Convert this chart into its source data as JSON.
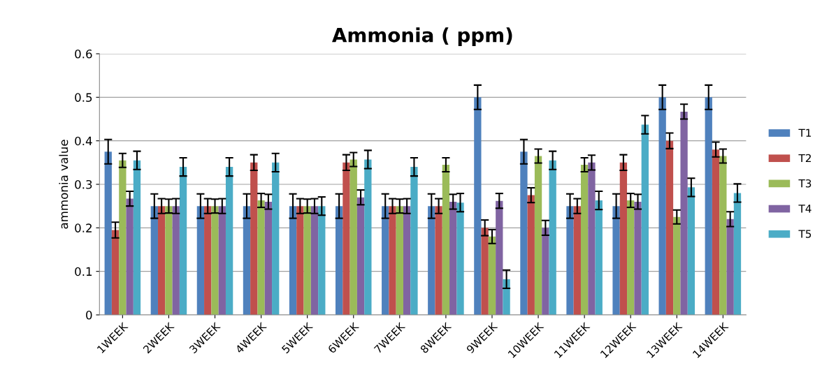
{
  "chart_data": {
    "type": "bar",
    "title": "Ammonia ( ppm)",
    "ylabel": "ammonia value",
    "categories": [
      "1WEEK",
      "2WEEK",
      "3WEEK",
      "4WEEK",
      "5WEEK",
      "6WEEK",
      "7WEEK",
      "8WEEK",
      "9WEEK",
      "10WEEK",
      "11WEEK",
      "12WEEK",
      "13WEEK",
      "14WEEK"
    ],
    "series": [
      {
        "name": "T1",
        "color": "#4f81bd",
        "values": [
          0.375,
          0.25,
          0.25,
          0.25,
          0.25,
          0.25,
          0.25,
          0.25,
          0.5,
          0.375,
          0.25,
          0.25,
          0.5,
          0.5
        ],
        "errors": [
          0.028,
          0.028,
          0.028,
          0.028,
          0.028,
          0.028,
          0.028,
          0.028,
          0.028,
          0.028,
          0.028,
          0.028,
          0.028,
          0.028
        ]
      },
      {
        "name": "T2",
        "color": "#c0504d",
        "values": [
          0.195,
          0.25,
          0.25,
          0.35,
          0.25,
          0.35,
          0.25,
          0.25,
          0.2,
          0.275,
          0.25,
          0.35,
          0.4,
          0.38
        ],
        "errors": [
          0.018,
          0.017,
          0.017,
          0.018,
          0.017,
          0.018,
          0.017,
          0.017,
          0.018,
          0.017,
          0.017,
          0.018,
          0.018,
          0.017
        ]
      },
      {
        "name": "T3",
        "color": "#9bbb59",
        "values": [
          0.355,
          0.25,
          0.25,
          0.263,
          0.25,
          0.357,
          0.25,
          0.345,
          0.18,
          0.365,
          0.345,
          0.263,
          0.225,
          0.365
        ],
        "errors": [
          0.016,
          0.016,
          0.016,
          0.016,
          0.016,
          0.016,
          0.016,
          0.016,
          0.016,
          0.016,
          0.016,
          0.016,
          0.016,
          0.016
        ]
      },
      {
        "name": "T4",
        "color": "#8064a2",
        "values": [
          0.267,
          0.25,
          0.25,
          0.26,
          0.25,
          0.27,
          0.25,
          0.26,
          0.262,
          0.2,
          0.35,
          0.26,
          0.467,
          0.22
        ],
        "errors": [
          0.017,
          0.017,
          0.017,
          0.017,
          0.017,
          0.017,
          0.017,
          0.017,
          0.017,
          0.017,
          0.017,
          0.017,
          0.017,
          0.017
        ]
      },
      {
        "name": "T5",
        "color": "#4bacc6",
        "values": [
          0.355,
          0.34,
          0.34,
          0.35,
          0.25,
          0.357,
          0.34,
          0.258,
          0.082,
          0.355,
          0.263,
          0.437,
          0.293,
          0.28
        ],
        "errors": [
          0.021,
          0.021,
          0.021,
          0.021,
          0.021,
          0.021,
          0.021,
          0.021,
          0.021,
          0.021,
          0.021,
          0.021,
          0.021,
          0.021
        ]
      }
    ],
    "ylim": [
      0,
      0.6
    ],
    "yticks": [
      {
        "value": 0,
        "label": "0"
      },
      0.1,
      0.2,
      0.3,
      0.4,
      0.5,
      0.6
    ],
    "grid": "y",
    "legend": "right"
  }
}
